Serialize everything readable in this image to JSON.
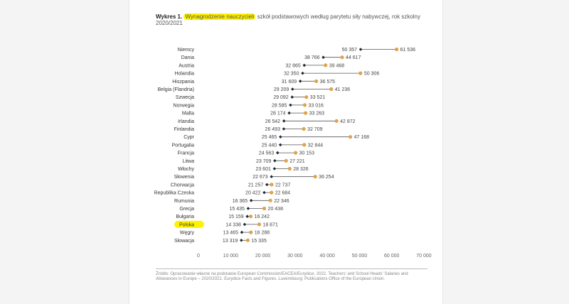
{
  "title": {
    "prefix": "Wykres 1.",
    "highlighted": "Wynagrodzenie nauczycieli",
    "rest": "szkół podstawowych według parytetu siły nabywczej, rok szkolny 2020/2021"
  },
  "source_note": "Źródło: Opracowanie własne na podstawie European Commission/EACEA/Eurydice, 2022. Teachers' and School Heads' Salaries and Allowances in Europe – 2020/2021. Eurydice Facts and Figures. Luxembourg: Publications Office of the European Union.",
  "colors": {
    "start_marker": "#1f2a38",
    "end_marker": "#e0a24a",
    "connector": "#555555",
    "highlight": "#fff200"
  },
  "chart_data": {
    "type": "dumbbell",
    "xlim": [
      0,
      70000
    ],
    "x_ticks": [
      {
        "value": 0,
        "label": "0"
      },
      {
        "value": 10000,
        "label": "10 000"
      },
      {
        "value": 20000,
        "label": "20 000"
      },
      {
        "value": 30000,
        "label": "30 000"
      },
      {
        "value": 40000,
        "label": "40 000"
      },
      {
        "value": 50000,
        "label": "50 000"
      },
      {
        "value": 60000,
        "label": "60 000"
      },
      {
        "value": 70000,
        "label": "70 000"
      }
    ],
    "highlighted_category": "Polska",
    "rows": [
      {
        "country": "Niemcy",
        "start": 50357,
        "start_label": "50 357",
        "end": 61536,
        "end_label": "61 536"
      },
      {
        "country": "Dania",
        "start": 38766,
        "start_label": "38 766",
        "end": 44617,
        "end_label": "44 617"
      },
      {
        "country": "Austria",
        "start": 32865,
        "start_label": "32 865",
        "end": 39468,
        "end_label": "39 468"
      },
      {
        "country": "Holandia",
        "start": 32350,
        "start_label": "32 350",
        "end": 50306,
        "end_label": "50 306"
      },
      {
        "country": "Hiszpania",
        "start": 31609,
        "start_label": "31 609",
        "end": 36575,
        "end_label": "36 575"
      },
      {
        "country": "Belgia (Flandria)",
        "start": 29209,
        "start_label": "29 209",
        "end": 41236,
        "end_label": "41 236"
      },
      {
        "country": "Szwecja",
        "start": 29092,
        "start_label": "29 092",
        "end": 33521,
        "end_label": "33 521"
      },
      {
        "country": "Norwegia",
        "start": 28585,
        "start_label": "28 585",
        "end": 33016,
        "end_label": "33 016"
      },
      {
        "country": "Malta",
        "start": 28174,
        "start_label": "28 174",
        "end": 33263,
        "end_label": "33 263"
      },
      {
        "country": "Irlandia",
        "start": 26542,
        "start_label": "26 542",
        "end": 42872,
        "end_label": "42 872"
      },
      {
        "country": "Finlandia",
        "start": 26493,
        "start_label": "26 493",
        "end": 32709,
        "end_label": "32 709"
      },
      {
        "country": "Cypr",
        "start": 25465,
        "start_label": "25 465",
        "end": 47168,
        "end_label": "47 168"
      },
      {
        "country": "Portugalia",
        "start": 25440,
        "start_label": "25 440",
        "end": 32844,
        "end_label": "32 844"
      },
      {
        "country": "Francja",
        "start": 24563,
        "start_label": "24 563",
        "end": 30153,
        "end_label": "30 153"
      },
      {
        "country": "Litwa",
        "start": 23709,
        "start_label": "23 709",
        "end": 27221,
        "end_label": "27 221"
      },
      {
        "country": "Włochy",
        "start": 23601,
        "start_label": "23 601",
        "end": 28326,
        "end_label": "28 326"
      },
      {
        "country": "Słowenia",
        "start": 22673,
        "start_label": "22 673",
        "end": 36254,
        "end_label": "36 254"
      },
      {
        "country": "Chorwacja",
        "start": 21257,
        "start_label": "21 257",
        "end": 22737,
        "end_label": "22 737"
      },
      {
        "country": "Republika Czeska",
        "start": 20422,
        "start_label": "20 422",
        "end": 22684,
        "end_label": "22 684"
      },
      {
        "country": "Rumunia",
        "start": 16365,
        "start_label": "16 365",
        "end": 22346,
        "end_label": "22 346"
      },
      {
        "country": "Grecja",
        "start": 15435,
        "start_label": "15 435",
        "end": 20438,
        "end_label": "20 438"
      },
      {
        "country": "Bułgaria",
        "start": 15159,
        "start_label": "15 159",
        "end": 16242,
        "end_label": "16 242"
      },
      {
        "country": "Polska",
        "start": 14338,
        "start_label": "14 338",
        "end": 18871,
        "end_label": "18 871"
      },
      {
        "country": "Węgry",
        "start": 13465,
        "start_label": "13 465",
        "end": 16288,
        "end_label": "16 288"
      },
      {
        "country": "Słowacja",
        "start": 13319,
        "start_label": "13 319",
        "end": 15335,
        "end_label": "15 335"
      }
    ]
  }
}
